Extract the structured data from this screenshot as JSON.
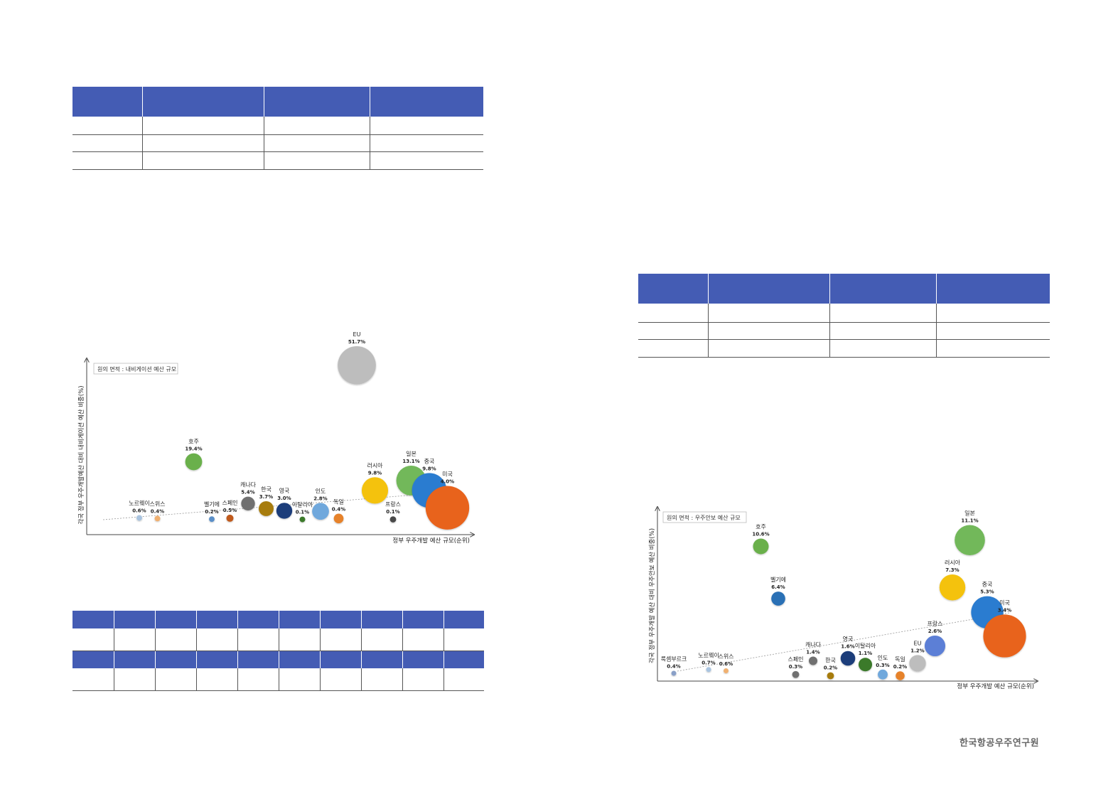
{
  "chart_data": [
    {
      "type": "scatter",
      "title": "",
      "xlabel": "정부 우주개발 예산 규모(순위)",
      "ylabel": "각국 정부 우주개발예산 대비 내비게이션 예산 비중(%)",
      "legend_box": "원의 면적 : 내비게이션 예산 규모",
      "trendline": true,
      "points": [
        {
          "name": "노르웨이",
          "value_label": "0.6%",
          "x": 1,
          "y": 0.6,
          "size": 0.5,
          "color": "#a9c4e0"
        },
        {
          "name": "스위스",
          "value_label": "0.4%",
          "x": 2,
          "y": 0.4,
          "size": 0.5,
          "color": "#f0b070"
        },
        {
          "name": "벨기에",
          "value_label": "0.2%",
          "x": 5,
          "y": 0.2,
          "size": 0.5,
          "color": "#5a8fc8"
        },
        {
          "name": "스페인",
          "value_label": "0.5%",
          "x": 6,
          "y": 0.5,
          "size": 0.8,
          "color": "#c05a1e"
        },
        {
          "name": "캐나다",
          "value_label": "5.4%",
          "x": 7,
          "y": 5.4,
          "size": 3,
          "color": "#707070"
        },
        {
          "name": "한국",
          "value_label": "3.7%",
          "x": 8,
          "y": 3.7,
          "size": 3.5,
          "color": "#a77c10"
        },
        {
          "name": "영국",
          "value_label": "3.0%",
          "x": 9,
          "y": 3.0,
          "size": 4,
          "color": "#1f3d7a"
        },
        {
          "name": "이탈리아",
          "value_label": "0.1%",
          "x": 10,
          "y": 0.1,
          "size": 0.5,
          "color": "#3b7a2a"
        },
        {
          "name": "인도",
          "value_label": "2.8%",
          "x": 11,
          "y": 2.8,
          "size": 4.5,
          "color": "#6fa8dc"
        },
        {
          "name": "독일",
          "value_label": "0.4%",
          "x": 12,
          "y": 0.4,
          "size": 1.5,
          "color": "#e6822c"
        },
        {
          "name": "호주",
          "value_label": "19.4%",
          "x": 4,
          "y": 19.4,
          "size": 4.5,
          "color": "#6ab04c"
        },
        {
          "name": "러시아",
          "value_label": "9.8%",
          "x": 14,
          "y": 9.8,
          "size": 11,
          "color": "#f4c20d"
        },
        {
          "name": "프랑스",
          "value_label": "0.1%",
          "x": 15,
          "y": 0.1,
          "size": 0.6,
          "color": "#4a4a4a"
        },
        {
          "name": "일본",
          "value_label": "13.1%",
          "x": 16,
          "y": 13.1,
          "size": 14,
          "color": "#72b85a"
        },
        {
          "name": "중국",
          "value_label": "9.8%",
          "x": 17,
          "y": 9.8,
          "size": 19,
          "color": "#2b7bd0"
        },
        {
          "name": "미국",
          "value_label": "4.0%",
          "x": 18,
          "y": 4.0,
          "size": 30,
          "color": "#e8631c"
        },
        {
          "name": "EU",
          "value_label": "51.7%",
          "x": 13,
          "y": 51.7,
          "size": 23,
          "color": "#bdbdbd"
        }
      ]
    },
    {
      "type": "scatter",
      "title": "",
      "xlabel": "정부 우주개발 예산 규모(순위)",
      "ylabel": "각국 정부 우주개발 예산 대비 우주안보 예산 비중(%)",
      "legend_box": "원의 면적 : 우주안보 예산 규모",
      "trendline": true,
      "points": [
        {
          "name": "룩셈부르크",
          "value_label": "0.4%",
          "x": 1,
          "y": 0.4,
          "size": 0.4,
          "color": "#8aa0c8"
        },
        {
          "name": "노르웨이",
          "value_label": "0.7%",
          "x": 3,
          "y": 0.7,
          "size": 0.4,
          "color": "#a9c4e0"
        },
        {
          "name": "스위스",
          "value_label": "0.6%",
          "x": 4,
          "y": 0.6,
          "size": 0.4,
          "color": "#f0b070"
        },
        {
          "name": "호주",
          "value_label": "10.6%",
          "x": 6,
          "y": 10.6,
          "size": 4,
          "color": "#6ab04c"
        },
        {
          "name": "벨기에",
          "value_label": "6.4%",
          "x": 7,
          "y": 6.4,
          "size": 3.2,
          "color": "#2c6fb5"
        },
        {
          "name": "스페인",
          "value_label": "0.3%",
          "x": 8,
          "y": 0.3,
          "size": 0.8,
          "color": "#707070"
        },
        {
          "name": "캐나다",
          "value_label": "1.4%",
          "x": 9,
          "y": 1.4,
          "size": 1.2,
          "color": "#707070"
        },
        {
          "name": "한국",
          "value_label": "0.2%",
          "x": 10,
          "y": 0.2,
          "size": 0.8,
          "color": "#a77c10"
        },
        {
          "name": "영국",
          "value_label": "1.6%",
          "x": 11,
          "y": 1.6,
          "size": 3.5,
          "color": "#1f3d7a"
        },
        {
          "name": "이탈리아",
          "value_label": "1.1%",
          "x": 12,
          "y": 1.1,
          "size": 3,
          "color": "#3b7a2a"
        },
        {
          "name": "인도",
          "value_label": "0.3%",
          "x": 13,
          "y": 0.3,
          "size": 1.6,
          "color": "#6fa8dc"
        },
        {
          "name": "독일",
          "value_label": "0.2%",
          "x": 14,
          "y": 0.2,
          "size": 1.3,
          "color": "#e6822c"
        },
        {
          "name": "EU",
          "value_label": "1.2%",
          "x": 15,
          "y": 1.2,
          "size": 4.5,
          "color": "#bdbdbd"
        },
        {
          "name": "프랑스",
          "value_label": "2.6%",
          "x": 16,
          "y": 2.6,
          "size": 7,
          "color": "#5b7fd6"
        },
        {
          "name": "러시아",
          "value_label": "7.3%",
          "x": 17,
          "y": 7.3,
          "size": 11,
          "color": "#f4c20d"
        },
        {
          "name": "일본",
          "value_label": "11.1%",
          "x": 18,
          "y": 11.1,
          "size": 15,
          "color": "#72b85a"
        },
        {
          "name": "중국",
          "value_label": "5.3%",
          "x": 19,
          "y": 5.3,
          "size": 17,
          "color": "#2b7bd0"
        },
        {
          "name": "미국",
          "value_label": "3.4%",
          "x": 20,
          "y": 3.4,
          "size": 30,
          "color": "#e8631c"
        }
      ]
    }
  ],
  "footer": {
    "org": "한국항공우주연구원"
  }
}
